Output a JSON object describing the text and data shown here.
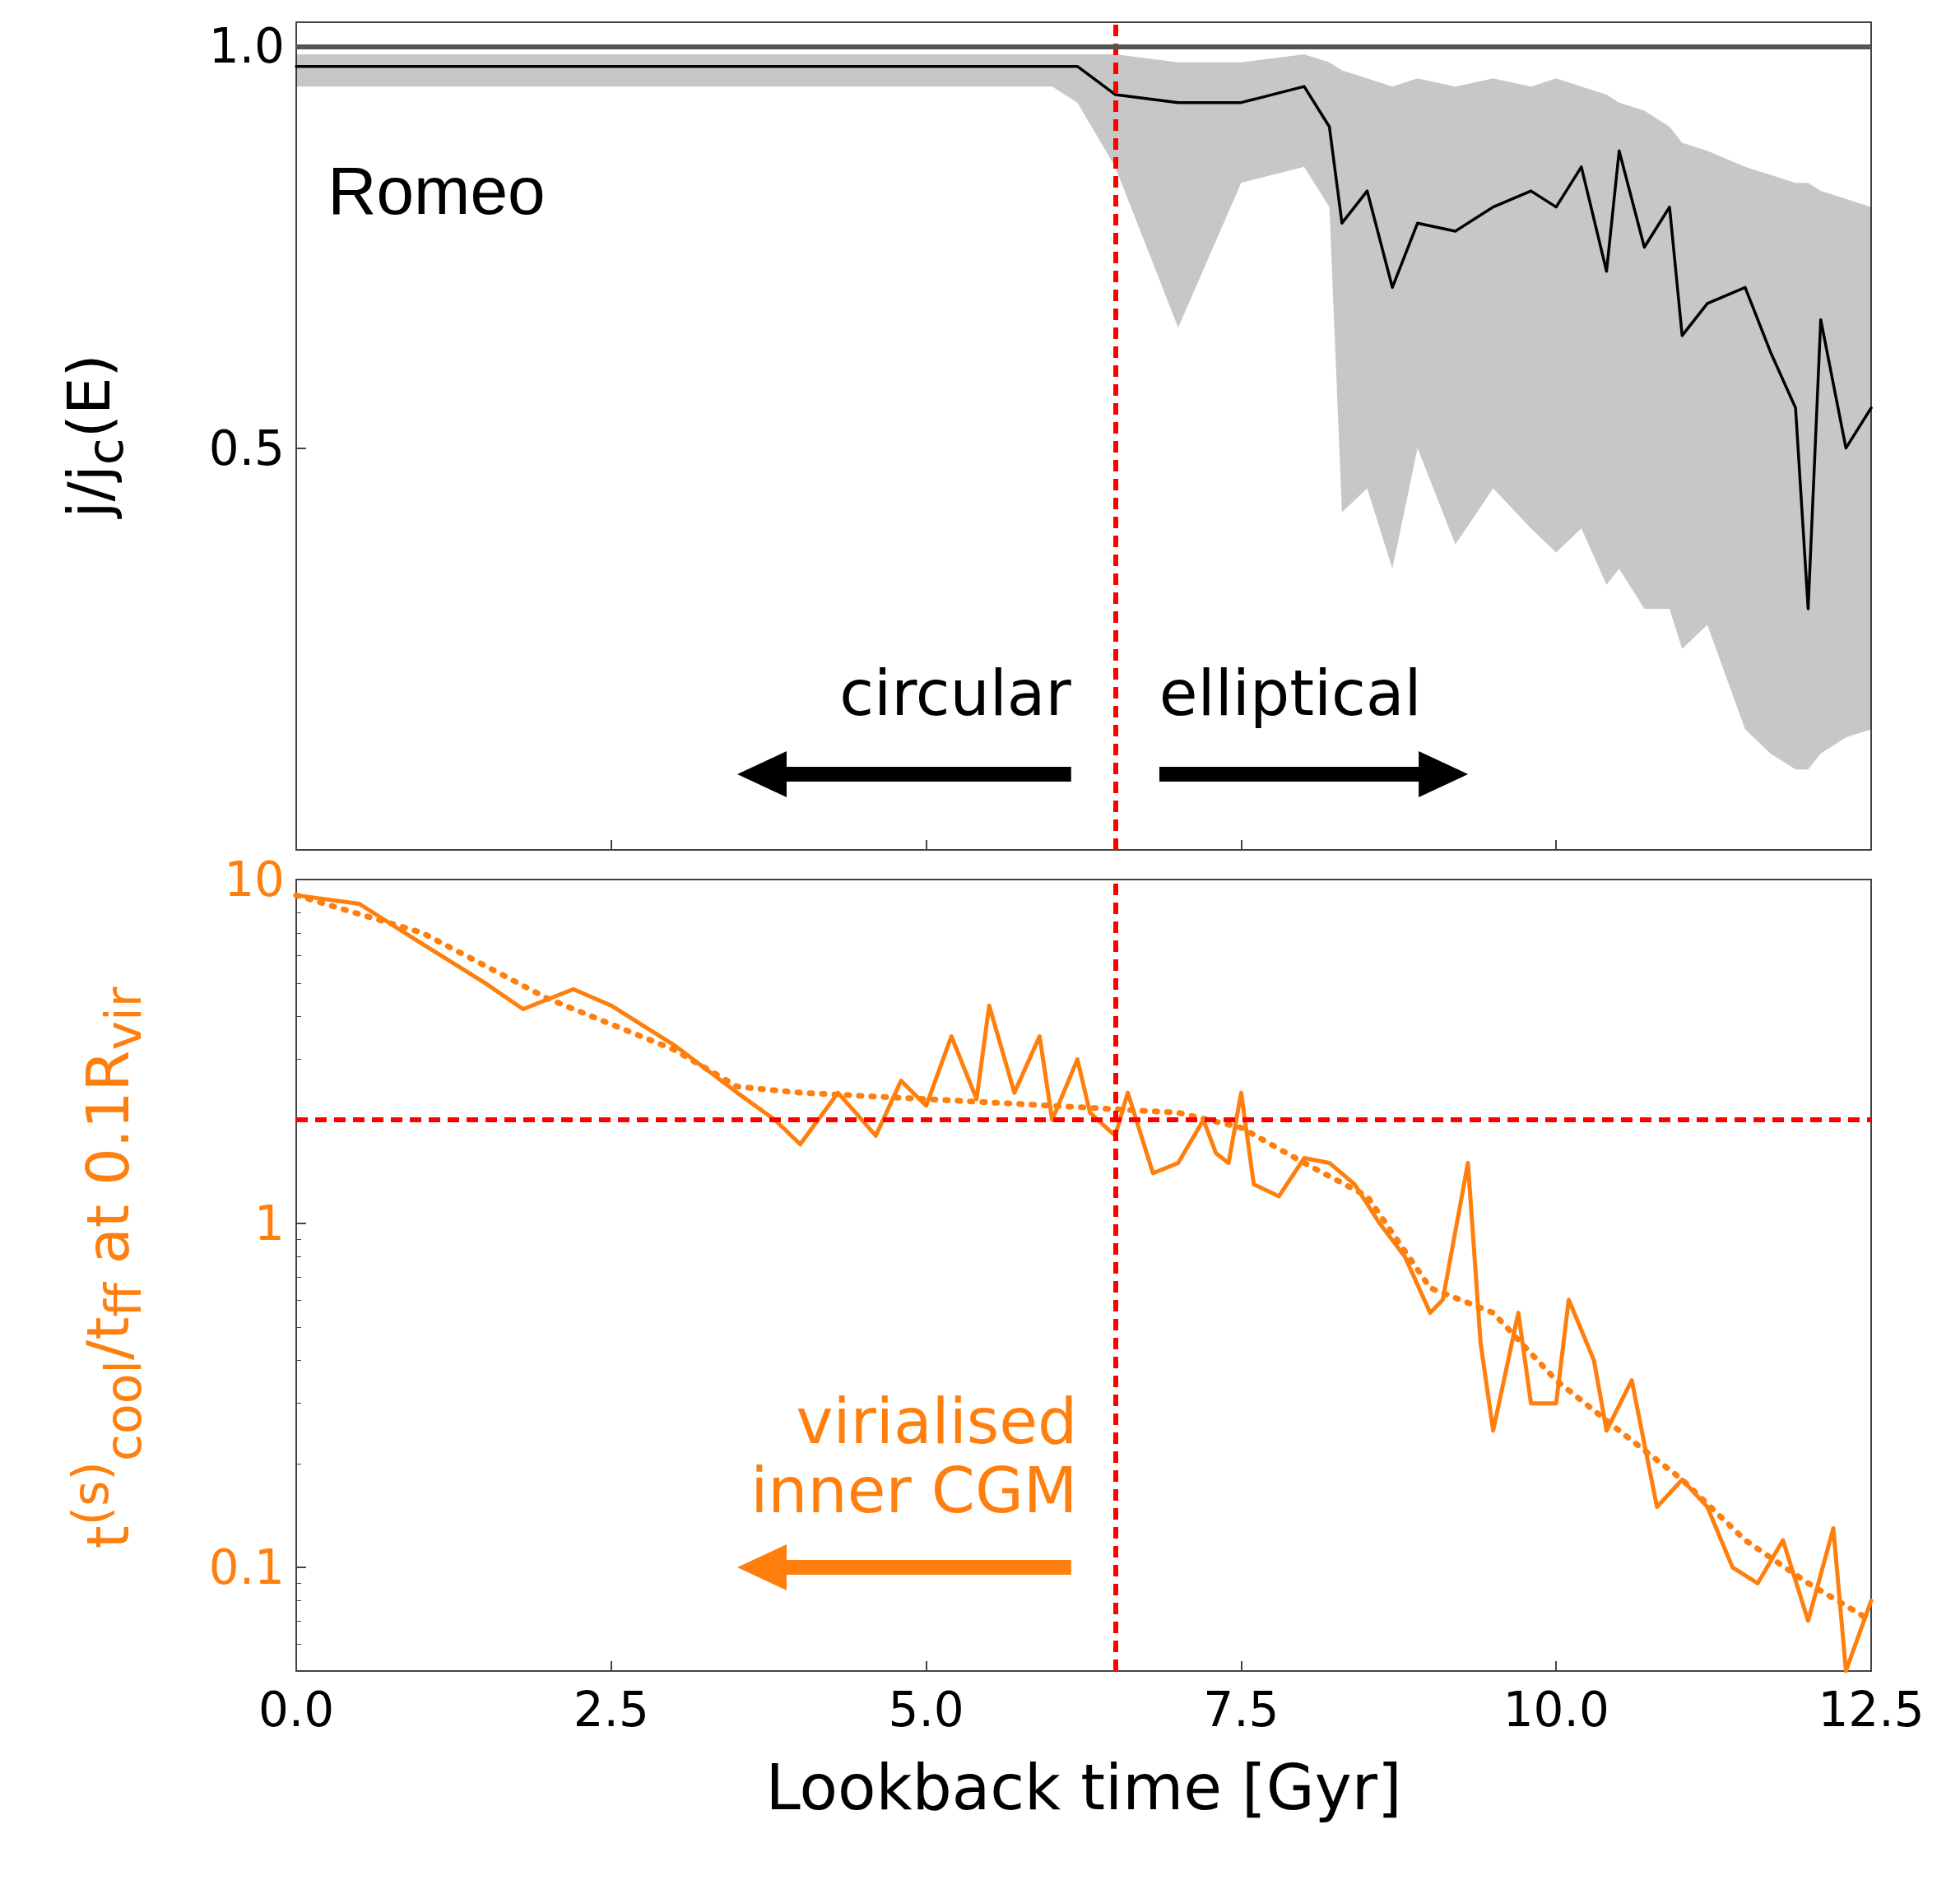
{
  "chart_data": [
    {
      "type": "line",
      "ylabel": "j/j$_{c}$(E)",
      "tick_labels": "y",
      "marker": "none",
      "xlim": [
        0,
        12.5
      ],
      "xticks": [
        0,
        2.5,
        5,
        7.5,
        10,
        12.5
      ],
      "ylim": [
        0,
        1.03
      ],
      "yticks": [
        {
          "value": 0.5,
          "label": "0.5"
        },
        {
          "value": 1,
          "label": "1.0"
        }
      ],
      "series": [
        {
          "color": "#000000",
          "line_style": "solid",
          "x": [
            0,
            1,
            2,
            3,
            4,
            5,
            6,
            6.2,
            6.5,
            7,
            7.5,
            8,
            8.2,
            8.3,
            8.5,
            8.7,
            8.9,
            9.2,
            9.5,
            9.8,
            10,
            10.2,
            10.4,
            10.5,
            10.7,
            10.9,
            11,
            11.2,
            11.5,
            11.7,
            11.9,
            12,
            12.1,
            12.3,
            12.5
          ],
          "values": [
            0.975,
            0.975,
            0.975,
            0.975,
            0.975,
            0.975,
            0.975,
            0.975,
            0.94,
            0.93,
            0.93,
            0.95,
            0.9,
            0.78,
            0.82,
            0.7,
            0.78,
            0.77,
            0.8,
            0.82,
            0.8,
            0.85,
            0.72,
            0.87,
            0.75,
            0.8,
            0.64,
            0.68,
            0.7,
            0.62,
            0.55,
            0.3,
            0.66,
            0.5,
            0.55
          ],
          "lower": [
            0.95,
            0.95,
            0.95,
            0.95,
            0.95,
            0.95,
            0.95,
            0.93,
            0.85,
            0.65,
            0.83,
            0.85,
            0.8,
            0.42,
            0.45,
            0.35,
            0.5,
            0.38,
            0.45,
            0.4,
            0.37,
            0.4,
            0.33,
            0.35,
            0.3,
            0.3,
            0.25,
            0.28,
            0.15,
            0.12,
            0.1,
            0.1,
            0.12,
            0.14,
            0.15
          ],
          "upper": [
            0.99,
            0.99,
            0.99,
            0.99,
            0.99,
            0.99,
            0.99,
            0.99,
            0.99,
            0.98,
            0.98,
            0.99,
            0.98,
            0.97,
            0.96,
            0.95,
            0.96,
            0.95,
            0.96,
            0.95,
            0.96,
            0.95,
            0.94,
            0.93,
            0.92,
            0.9,
            0.88,
            0.87,
            0.85,
            0.84,
            0.83,
            0.83,
            0.82,
            0.81,
            0.8
          ]
        }
      ],
      "ref_lines": [
        {
          "axis": "x",
          "value": 6.5,
          "color": "#ff0000",
          "line_style": "dashed"
        },
        {
          "axis": "y",
          "value": 1,
          "color": "#555555",
          "line_style": "solid"
        }
      ],
      "annotations": [
        "Romeo",
        "circular",
        "elliptical"
      ]
    },
    {
      "type": "line",
      "xlabel": "Lookback time [Gyr]",
      "ylabel": "t$^{(s)}$$_{cool}$/t$_{ff}$ at 0.1R$_{vir}$",
      "log": "y",
      "marker": "none",
      "xlim": [
        0,
        12.5
      ],
      "xticks": [
        {
          "value": 0,
          "label": "0.0"
        },
        {
          "value": 2.5,
          "label": "2.5"
        },
        {
          "value": 5,
          "label": "5.0"
        },
        {
          "value": 7.5,
          "label": "7.5"
        },
        {
          "value": 10,
          "label": "10.0"
        },
        {
          "value": 12.5,
          "label": "12.5"
        }
      ],
      "ylim": [
        0.05,
        10
      ],
      "yticks": [
        0.1,
        1,
        10
      ],
      "series": [
        {
          "color": "#ff7f0e",
          "line_style": "solid",
          "x": [
            0,
            0.5,
            1,
            1.5,
            1.8,
            2.2,
            2.5,
            3,
            3.5,
            3.8,
            4,
            4.3,
            4.6,
            4.8,
            5,
            5.2,
            5.4,
            5.5,
            5.7,
            5.9,
            6,
            6.2,
            6.3,
            6.5,
            6.6,
            6.8,
            7,
            7.2,
            7.3,
            7.4,
            7.5,
            7.6,
            7.8,
            8,
            8.2,
            8.4,
            8.6,
            8.8,
            9,
            9.1,
            9.3,
            9.4,
            9.5,
            9.7,
            9.8,
            10,
            10.1,
            10.3,
            10.4,
            10.6,
            10.8,
            11,
            11.2,
            11.4,
            11.6,
            11.8,
            12,
            12.2,
            12.3,
            12.5
          ],
          "values": [
            9,
            8.5,
            6.5,
            5,
            4.2,
            4.8,
            4.3,
            3.3,
            2.4,
            2,
            1.7,
            2.4,
            1.8,
            2.6,
            2.2,
            3.5,
            2.3,
            4.3,
            2.4,
            3.5,
            2,
            3,
            2.1,
            1.8,
            2.4,
            1.4,
            1.5,
            2,
            1.6,
            1.5,
            2.4,
            1.3,
            1.2,
            1.55,
            1.5,
            1.3,
            1,
            0.8,
            0.55,
            0.6,
            1.5,
            0.45,
            0.25,
            0.55,
            0.3,
            0.3,
            0.6,
            0.4,
            0.25,
            0.35,
            0.15,
            0.18,
            0.15,
            0.1,
            0.09,
            0.12,
            0.07,
            0.13,
            0.05,
            0.08
          ]
        },
        {
          "color": "#ff7f0e",
          "line_style": "dotted",
          "x": [
            0,
            1,
            2,
            3,
            3.5,
            4,
            5,
            6,
            7,
            7.5,
            8,
            8.5,
            9,
            9.5,
            10,
            10.5,
            11,
            11.5,
            12,
            12.5
          ],
          "values": [
            9,
            7,
            4.5,
            3.2,
            2.5,
            2.4,
            2.3,
            2.2,
            2.1,
            1.9,
            1.5,
            1.2,
            0.65,
            0.55,
            0.35,
            0.25,
            0.18,
            0.12,
            0.09,
            0.07
          ]
        }
      ],
      "ref_lines": [
        {
          "axis": "x",
          "value": 6.5,
          "color": "#ff0000",
          "line_style": "dashed"
        },
        {
          "axis": "y",
          "value": 2,
          "color": "#ff0000",
          "line_style": "dashed"
        }
      ],
      "annotations": [
        "virialised inner CGM"
      ]
    }
  ]
}
